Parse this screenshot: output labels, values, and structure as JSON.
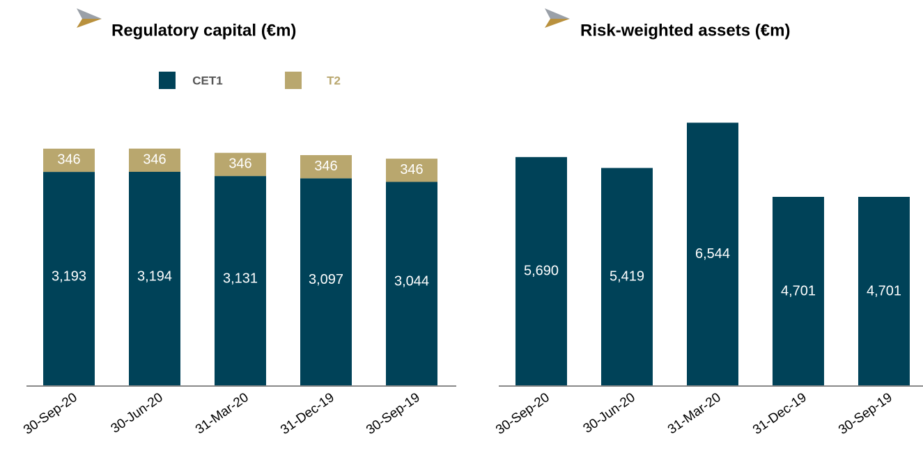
{
  "chart_data": [
    {
      "type": "bar",
      "stacked": true,
      "title": "Regulatory capital (€m)",
      "categories": [
        "30-Sep-20",
        "30-Jun-20",
        "31-Mar-20",
        "31-Dec-19",
        "30-Sep-19"
      ],
      "series": [
        {
          "name": "CET1",
          "color": "#004258",
          "values": [
            3193,
            3194,
            3131,
            3097,
            3044
          ],
          "value_labels": [
            "3,193",
            "3,194",
            "3,131",
            "3,097",
            "3,044"
          ]
        },
        {
          "name": "T2",
          "color": "#b9a76e",
          "values": [
            346,
            346,
            346,
            346,
            346
          ]
        }
      ],
      "ylim": [
        0,
        4200
      ],
      "legend": "top"
    },
    {
      "type": "bar",
      "title": "Risk-weighted assets (€m)",
      "categories": [
        "30-Sep-20",
        "30-Jun-20",
        "31-Mar-20",
        "31-Dec-19",
        "30-Sep-19"
      ],
      "values": [
        5690,
        5419,
        6544,
        4701,
        4701
      ],
      "value_labels": [
        "5,690",
        "5,419",
        "6,544",
        "4,701",
        "4,701"
      ],
      "color": "#004258",
      "ylim": [
        0,
        7000
      ]
    }
  ]
}
